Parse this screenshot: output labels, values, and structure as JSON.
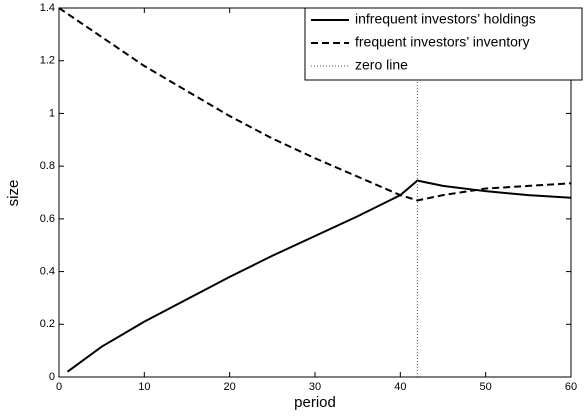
{
  "chart_data": {
    "type": "line",
    "x_label": "period",
    "y_label": "size",
    "xlim": [
      0,
      60
    ],
    "ylim": [
      0,
      1.4
    ],
    "xticks": [
      0,
      10,
      20,
      30,
      40,
      50,
      60
    ],
    "yticks": [
      0,
      0.2,
      0.4,
      0.6,
      0.8,
      1,
      1.2,
      1.4
    ],
    "legend": "upper right",
    "series": [
      {
        "name": "infrequent investors’ holdings",
        "color": "#000000",
        "linestyle": "solid",
        "x": [
          1,
          5,
          10,
          15,
          20,
          25,
          30,
          35,
          40,
          42,
          45,
          50,
          55,
          60
        ],
        "values": [
          0.02,
          0.115,
          0.21,
          0.295,
          0.38,
          0.46,
          0.535,
          0.61,
          0.69,
          0.745,
          0.725,
          0.705,
          0.69,
          0.68
        ]
      },
      {
        "name": "frequent investors’ inventory",
        "color": "#000000",
        "linestyle": "dashed",
        "x": [
          0,
          5,
          10,
          15,
          20,
          25,
          30,
          35,
          40,
          42,
          45,
          50,
          55,
          60
        ],
        "values": [
          1.4,
          1.29,
          1.18,
          1.085,
          0.99,
          0.905,
          0.83,
          0.76,
          0.69,
          0.67,
          0.69,
          0.715,
          0.725,
          0.735
        ]
      },
      {
        "name": "zero line",
        "color": "#555555",
        "linestyle": "dotted",
        "x": [
          42,
          42
        ],
        "values": [
          0,
          1.4
        ]
      }
    ]
  }
}
